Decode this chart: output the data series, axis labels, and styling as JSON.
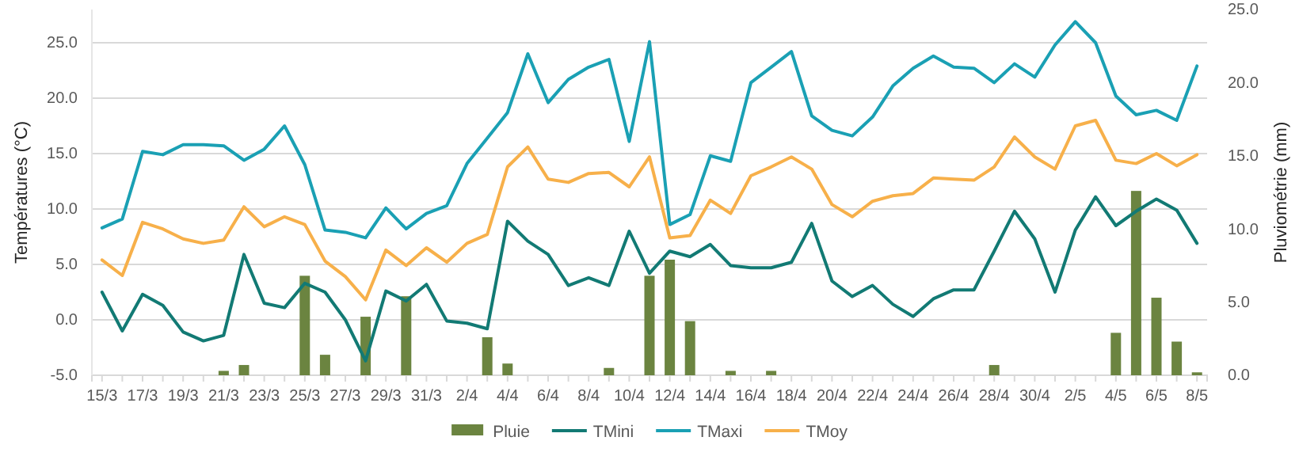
{
  "chart_data": {
    "type": "line",
    "ylabel": "Températures (°C)",
    "y2label": "Pluviométrie (mm)",
    "categories": [
      "15/3",
      null,
      "17/3",
      null,
      "19/3",
      null,
      "21/3",
      null,
      "23/3",
      null,
      "25/3",
      null,
      "27/3",
      null,
      "29/3",
      null,
      "31/3",
      null,
      "2/4",
      null,
      "4/4",
      null,
      "6/4",
      null,
      "8/4",
      null,
      "10/4",
      null,
      "12/4",
      null,
      "14/4",
      null,
      "16/4",
      null,
      "18/4",
      null,
      "20/4",
      null,
      "22/4",
      null,
      "24/4",
      null,
      "26/4",
      null,
      "28/4",
      null,
      "30/4",
      null,
      "2/5",
      null,
      "4/5",
      null,
      "6/5",
      null,
      "8/5"
    ],
    "ylim": [
      -5,
      28
    ],
    "yticks": [
      {
        "value": -5,
        "label": "-5.0"
      },
      {
        "value": 0,
        "label": "0.0"
      },
      {
        "value": 5,
        "label": "5.0"
      },
      {
        "value": 10,
        "label": "10.0"
      },
      {
        "value": 15,
        "label": "15.0"
      },
      {
        "value": 20,
        "label": "20.0"
      },
      {
        "value": 25,
        "label": "25.0"
      }
    ],
    "y2lim": [
      0,
      25
    ],
    "y2ticks": [
      {
        "value": 0,
        "label": "0.0"
      },
      {
        "value": 5,
        "label": "5.0"
      },
      {
        "value": 10,
        "label": "10.0"
      },
      {
        "value": 15,
        "label": "15.0"
      },
      {
        "value": 20,
        "label": "20.0"
      },
      {
        "value": 25,
        "label": "25.0"
      }
    ],
    "grid": "y",
    "legend": "bottom",
    "series": [
      {
        "name": "Pluie",
        "type": "bar",
        "axis": "y2",
        "color": "#6b8440",
        "values": [
          0,
          0,
          0,
          0,
          0,
          0,
          0.3,
          0.7,
          0,
          0,
          6.8,
          1.4,
          0,
          4.0,
          0,
          5.4,
          0,
          0,
          0,
          2.6,
          0.8,
          0,
          0,
          0,
          0,
          0.5,
          0,
          6.8,
          7.9,
          3.7,
          0,
          0.3,
          0,
          0.3,
          0,
          0,
          0,
          0,
          0,
          0,
          0,
          0,
          0,
          0,
          0.7,
          0,
          0,
          0,
          0,
          0,
          2.9,
          12.6,
          5.3,
          2.3,
          0.2
        ]
      },
      {
        "name": "TMini",
        "color": "#127a74",
        "values": [
          2.5,
          -1.0,
          2.3,
          1.3,
          -1.1,
          -1.9,
          -1.4,
          5.9,
          1.5,
          1.1,
          3.3,
          2.5,
          0.0,
          -3.7,
          2.6,
          1.7,
          3.2,
          -0.1,
          -0.3,
          -0.8,
          8.9,
          7.1,
          5.9,
          3.1,
          3.8,
          3.1,
          8.0,
          4.2,
          6.2,
          5.7,
          6.8,
          4.9,
          4.7,
          4.7,
          5.2,
          8.7,
          3.5,
          2.1,
          3.1,
          1.4,
          0.3,
          1.9,
          2.7,
          2.7,
          6.2,
          9.8,
          7.3,
          2.5,
          8.1,
          11.1,
          8.5,
          9.8,
          10.9,
          9.9,
          6.9
        ]
      },
      {
        "name": "TMaxi",
        "color": "#1aa0b4",
        "values": [
          8.3,
          9.1,
          15.2,
          14.9,
          15.8,
          15.8,
          15.7,
          14.4,
          15.4,
          17.5,
          14.0,
          8.1,
          7.9,
          7.4,
          10.1,
          8.2,
          9.6,
          10.3,
          14.1,
          16.4,
          18.7,
          24.0,
          19.6,
          21.7,
          22.8,
          23.5,
          16.1,
          25.1,
          8.6,
          9.5,
          14.8,
          14.3,
          21.4,
          22.8,
          24.2,
          18.4,
          17.1,
          16.6,
          18.3,
          21.1,
          22.7,
          23.8,
          22.8,
          22.7,
          21.4,
          23.1,
          21.9,
          24.8,
          26.9,
          25.0,
          20.2,
          18.5,
          18.9,
          18.0,
          22.9
        ]
      },
      {
        "name": "TMoy",
        "color": "#f7b04a",
        "values": [
          5.4,
          4.0,
          8.8,
          8.2,
          7.3,
          6.9,
          7.2,
          10.2,
          8.4,
          9.3,
          8.6,
          5.3,
          3.9,
          1.8,
          6.3,
          4.9,
          6.5,
          5.2,
          6.9,
          7.7,
          13.8,
          15.6,
          12.7,
          12.4,
          13.2,
          13.3,
          12.0,
          14.7,
          7.4,
          7.6,
          10.8,
          9.6,
          13.0,
          13.8,
          14.7,
          13.6,
          10.4,
          9.3,
          10.7,
          11.2,
          11.4,
          12.8,
          12.7,
          12.6,
          13.8,
          16.5,
          14.7,
          13.6,
          17.5,
          18.0,
          14.4,
          14.1,
          15.0,
          13.9,
          14.9
        ]
      }
    ]
  }
}
